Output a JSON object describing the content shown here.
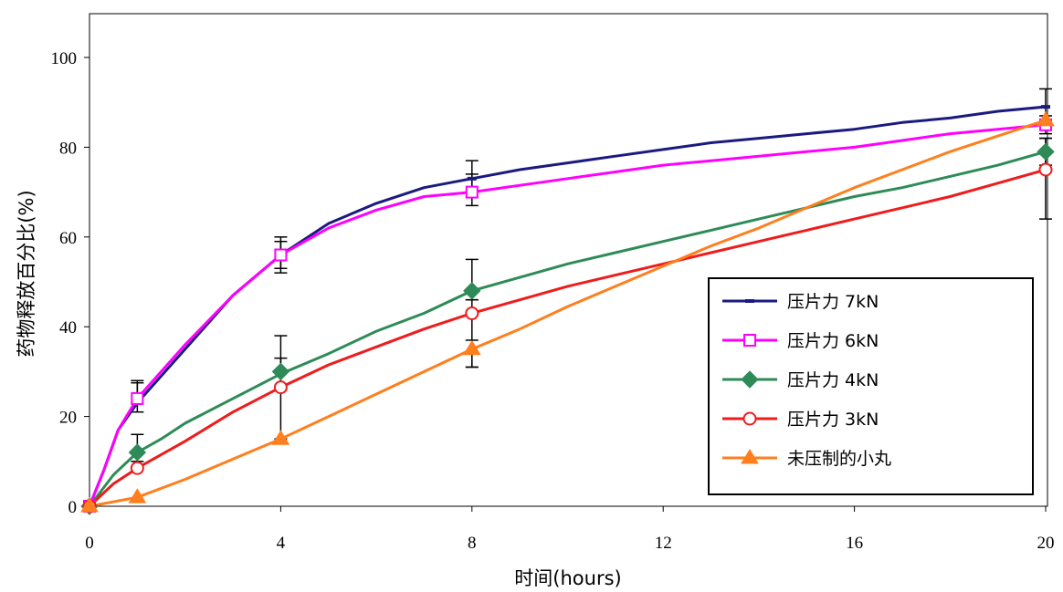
{
  "chart_data": {
    "type": "line",
    "title": "",
    "xlabel": "时间(hours)",
    "ylabel": "药物释放百分比(%)",
    "xlim": [
      0,
      20
    ],
    "ylim": [
      0,
      100
    ],
    "x_ticks": [
      0,
      4,
      8,
      12,
      16,
      20
    ],
    "y_ticks": [
      0,
      20,
      40,
      60,
      80,
      100
    ],
    "grid": false,
    "legend_position": "bottom-right",
    "series": [
      {
        "name": "压片力 7kN",
        "color": "#1a1a80",
        "marker": "dash",
        "points": [
          [
            0,
            0
          ],
          [
            0.3,
            8
          ],
          [
            0.6,
            17
          ],
          [
            1,
            23
          ],
          [
            1.5,
            29
          ],
          [
            2,
            35
          ],
          [
            3,
            47
          ],
          [
            4,
            56
          ],
          [
            5,
            63
          ],
          [
            6,
            67.5
          ],
          [
            7,
            71
          ],
          [
            8,
            73
          ],
          [
            9,
            75
          ],
          [
            10,
            76.5
          ],
          [
            11,
            78
          ],
          [
            12,
            79.5
          ],
          [
            13,
            81
          ],
          [
            14,
            82
          ],
          [
            15,
            83
          ],
          [
            16,
            84
          ],
          [
            17,
            85.5
          ],
          [
            18,
            86.5
          ],
          [
            19,
            88
          ],
          [
            20,
            89
          ]
        ],
        "markers": [
          [
            0,
            0
          ],
          [
            1,
            23
          ],
          [
            4,
            56
          ],
          [
            8,
            73
          ],
          [
            20,
            89
          ]
        ],
        "error_bars": [
          [
            1,
            23,
            27.5
          ],
          [
            4,
            53,
            60
          ],
          [
            8,
            69,
            77
          ],
          [
            20,
            85,
            93
          ]
        ]
      },
      {
        "name": "压片力 6kN",
        "color": "#ff00ff",
        "marker": "open-square",
        "points": [
          [
            0,
            0
          ],
          [
            0.3,
            8
          ],
          [
            0.6,
            17
          ],
          [
            1,
            24
          ],
          [
            1.5,
            30
          ],
          [
            2,
            36
          ],
          [
            3,
            47
          ],
          [
            4,
            56
          ],
          [
            5,
            62
          ],
          [
            6,
            66
          ],
          [
            7,
            69
          ],
          [
            8,
            70
          ],
          [
            9,
            71.5
          ],
          [
            10,
            73
          ],
          [
            11,
            74.5
          ],
          [
            12,
            76
          ],
          [
            13,
            77
          ],
          [
            14,
            78
          ],
          [
            15,
            79
          ],
          [
            16,
            80
          ],
          [
            17,
            81.5
          ],
          [
            18,
            83
          ],
          [
            19,
            84
          ],
          [
            20,
            85
          ]
        ],
        "markers": [
          [
            0,
            0
          ],
          [
            1,
            24
          ],
          [
            4,
            56
          ],
          [
            8,
            70
          ],
          [
            20,
            85
          ]
        ],
        "error_bars": [
          [
            1,
            21,
            28
          ],
          [
            4,
            52,
            59
          ],
          [
            8,
            67,
            74
          ],
          [
            20,
            83,
            87
          ]
        ]
      },
      {
        "name": "压片力 4kN",
        "color": "#2e8b57",
        "marker": "filled-diamond",
        "points": [
          [
            0,
            0
          ],
          [
            0.5,
            7
          ],
          [
            1,
            12
          ],
          [
            1.5,
            15
          ],
          [
            2,
            18.5
          ],
          [
            3,
            24
          ],
          [
            4,
            29.5
          ],
          [
            5,
            34
          ],
          [
            6,
            39
          ],
          [
            7,
            43
          ],
          [
            8,
            48
          ],
          [
            9,
            51
          ],
          [
            10,
            54
          ],
          [
            11,
            56.5
          ],
          [
            12,
            59
          ],
          [
            13,
            61.5
          ],
          [
            14,
            64
          ],
          [
            15,
            66.5
          ],
          [
            16,
            69
          ],
          [
            17,
            71
          ],
          [
            18,
            73.5
          ],
          [
            19,
            76
          ],
          [
            20,
            79
          ]
        ],
        "markers": [
          [
            0,
            0
          ],
          [
            1,
            12
          ],
          [
            4,
            30
          ],
          [
            8,
            48
          ],
          [
            20,
            79
          ]
        ],
        "error_bars": [
          [
            1,
            10,
            16
          ],
          [
            4,
            26,
            38
          ],
          [
            8,
            46,
            55
          ],
          [
            20,
            76,
            82
          ]
        ]
      },
      {
        "name": "压片力 3kN",
        "color": "#ee1c1c",
        "marker": "open-circle",
        "points": [
          [
            0,
            0
          ],
          [
            0.5,
            5
          ],
          [
            1,
            8.5
          ],
          [
            1.5,
            11.5
          ],
          [
            2,
            14.5
          ],
          [
            3,
            21
          ],
          [
            4,
            26.5
          ],
          [
            5,
            31.5
          ],
          [
            6,
            35.5
          ],
          [
            7,
            39.5
          ],
          [
            8,
            43
          ],
          [
            9,
            46
          ],
          [
            10,
            49
          ],
          [
            11,
            51.5
          ],
          [
            12,
            54
          ],
          [
            13,
            56.5
          ],
          [
            14,
            59
          ],
          [
            15,
            61.5
          ],
          [
            16,
            64
          ],
          [
            17,
            66.5
          ],
          [
            18,
            69
          ],
          [
            19,
            72
          ],
          [
            20,
            75
          ]
        ],
        "markers": [
          [
            0,
            0
          ],
          [
            1,
            8.5
          ],
          [
            4,
            26.5
          ],
          [
            8,
            43
          ],
          [
            20,
            75
          ]
        ],
        "error_bars": [
          [
            4,
            15,
            33
          ],
          [
            8,
            31,
            46
          ],
          [
            20,
            64,
            82
          ]
        ]
      },
      {
        "name": "未压制的小丸",
        "color": "#ff7f1e",
        "marker": "filled-triangle",
        "points": [
          [
            0,
            0
          ],
          [
            1,
            2
          ],
          [
            2,
            6
          ],
          [
            3,
            10.5
          ],
          [
            4,
            15
          ],
          [
            5,
            20
          ],
          [
            6,
            25
          ],
          [
            7,
            30
          ],
          [
            8,
            35
          ],
          [
            9,
            39.5
          ],
          [
            10,
            44.5
          ],
          [
            11,
            49
          ],
          [
            12,
            53.5
          ],
          [
            13,
            58
          ],
          [
            14,
            62
          ],
          [
            15,
            66.5
          ],
          [
            16,
            71
          ],
          [
            17,
            75
          ],
          [
            18,
            79
          ],
          [
            19,
            82.5
          ],
          [
            20,
            86
          ]
        ],
        "markers": [
          [
            0,
            0
          ],
          [
            1,
            2
          ],
          [
            4,
            15
          ],
          [
            8,
            35
          ],
          [
            20,
            86
          ]
        ],
        "error_bars": [
          [
            8,
            31,
            37
          ]
        ]
      }
    ]
  }
}
